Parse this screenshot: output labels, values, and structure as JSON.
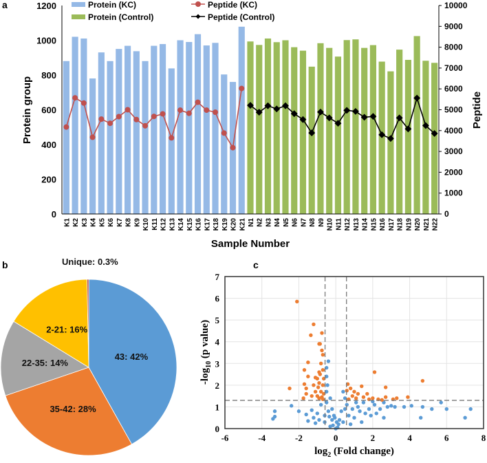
{
  "panels": {
    "a": "a",
    "b": "b",
    "c": "c"
  },
  "chart_data": [
    {
      "type": "bar",
      "panel": "a",
      "xlabel": "Sample Number",
      "ylabel": "Protein group",
      "y2label": "Peptide",
      "ylim": [
        0,
        1200
      ],
      "y2lim": [
        0,
        10000
      ],
      "yticks": [
        0,
        200,
        400,
        600,
        800,
        1000,
        1200
      ],
      "y2ticks": [
        0,
        1000,
        2000,
        3000,
        4000,
        5000,
        6000,
        7000,
        8000,
        9000,
        10000
      ],
      "legend_position": "top",
      "colors": {
        "protein_kc": "#95b9e6",
        "protein_control": "#9bbb59",
        "peptide_kc": "#c0504d",
        "peptide_control": "#000000"
      },
      "groups": [
        {
          "protein_name": "Protein (KC)",
          "peptide_name": "Peptide (KC)",
          "categories": [
            "K1",
            "K2",
            "K3",
            "K4",
            "K5",
            "K6",
            "K7",
            "K8",
            "K9",
            "K10",
            "K11",
            "K12",
            "K13",
            "K14",
            "K15",
            "K16",
            "K17",
            "K18",
            "K19",
            "K20",
            "K21"
          ],
          "protein": [
            880,
            1020,
            1010,
            780,
            930,
            880,
            950,
            968,
            937,
            880,
            968,
            978,
            838,
            1000,
            990,
            1035,
            970,
            985,
            803,
            760,
            1078
          ],
          "peptide": [
            4170,
            5570,
            5320,
            3680,
            4550,
            4350,
            4670,
            5000,
            4530,
            4230,
            4680,
            4800,
            3650,
            4980,
            4830,
            5360,
            4980,
            4880,
            3880,
            3180,
            6020
          ]
        },
        {
          "protein_name": "Protein (Control)",
          "peptide_name": "Peptide (Control)",
          "categories": [
            "N1",
            "N2",
            "N3",
            "N4",
            "N5",
            "N6",
            "N7",
            "N8",
            "N9",
            "N10",
            "N11",
            "N12",
            "N13",
            "N14",
            "N15",
            "N16",
            "N17",
            "N18",
            "N19",
            "N20",
            "N21",
            "N22"
          ],
          "protein": [
            993,
            973,
            1010,
            989,
            1000,
            960,
            940,
            848,
            983,
            956,
            906,
            1001,
            1005,
            956,
            972,
            877,
            821,
            946,
            887,
            1024,
            882,
            870
          ],
          "peptide": [
            5210,
            4880,
            5190,
            5040,
            5190,
            4810,
            4530,
            3890,
            4890,
            4610,
            4350,
            4970,
            4920,
            4640,
            4680,
            3800,
            3620,
            4610,
            4080,
            5560,
            4240,
            3860
          ]
        }
      ]
    },
    {
      "type": "pie",
      "panel": "b",
      "slices": [
        {
          "label": "43: 42%",
          "value": 42,
          "color": "#5b9bd5"
        },
        {
          "label": "35-42: 28%",
          "value": 28,
          "color": "#ed7d31"
        },
        {
          "label": "22-35: 14%",
          "value": 14,
          "color": "#a5a5a5"
        },
        {
          "label": "2-21: 16%",
          "value": 16,
          "color": "#ffc000"
        },
        {
          "label": "Unique: 0.3%",
          "value": 0.3,
          "color": "#b03a2e"
        }
      ]
    },
    {
      "type": "scatter",
      "panel": "c",
      "xlabel": "log2 (Fold change)",
      "xlabel_main": "log",
      "xlabel_sub": "2",
      "xlabel_rest": " (Fold change)",
      "ylabel_main": "-log",
      "ylabel_sub": "10",
      "ylabel_rest": " (p value)",
      "xlim": [
        -6,
        8
      ],
      "ylim": [
        0,
        7
      ],
      "xticks": [
        -6,
        -4,
        -2,
        0,
        2,
        4,
        6,
        8
      ],
      "yticks": [
        0,
        1,
        2,
        3,
        4,
        5,
        6,
        7
      ],
      "grid": true,
      "threshold_lines": {
        "x": [
          -0.58,
          0.58
        ],
        "y": 1.3
      },
      "colors": {
        "significant": "#ed7d31",
        "not_significant": "#5b9bd5"
      },
      "significant": [
        [
          -2.1,
          5.85
        ],
        [
          -1.2,
          4.8
        ],
        [
          -1.35,
          4.3
        ],
        [
          -0.75,
          4.4
        ],
        [
          -0.9,
          3.9
        ],
        [
          -0.85,
          3.9
        ],
        [
          -0.75,
          3.6
        ],
        [
          -0.7,
          3.4
        ],
        [
          -1.5,
          3.05
        ],
        [
          -0.8,
          3.0
        ],
        [
          -1.7,
          2.7
        ],
        [
          -0.9,
          2.6
        ],
        [
          -0.7,
          2.7
        ],
        [
          -1.5,
          2.4
        ],
        [
          -1.1,
          2.35
        ],
        [
          -0.85,
          2.5
        ],
        [
          -0.65,
          2.3
        ],
        [
          -1.0,
          2.3
        ],
        [
          -1.7,
          2.05
        ],
        [
          -1.2,
          2.0
        ],
        [
          -0.9,
          2.1
        ],
        [
          -0.7,
          2.0
        ],
        [
          -0.95,
          1.9
        ],
        [
          -2.5,
          1.85
        ],
        [
          -1.6,
          1.85
        ],
        [
          -1.6,
          1.6
        ],
        [
          -0.8,
          1.7
        ],
        [
          -1.1,
          1.7
        ],
        [
          -0.65,
          1.6
        ],
        [
          -1.0,
          1.5
        ],
        [
          -0.75,
          1.45
        ],
        [
          -1.75,
          1.4
        ],
        [
          -0.9,
          1.4
        ],
        [
          -1.3,
          1.5
        ],
        [
          -0.7,
          1.35
        ],
        [
          2.1,
          2.6
        ],
        [
          4.7,
          2.2
        ],
        [
          0.65,
          2.05
        ],
        [
          0.8,
          1.85
        ],
        [
          1.4,
          1.95
        ],
        [
          2.7,
          1.9
        ],
        [
          1.0,
          1.7
        ],
        [
          1.2,
          1.6
        ],
        [
          0.6,
          1.75
        ],
        [
          1.7,
          1.6
        ],
        [
          0.9,
          1.5
        ],
        [
          1.5,
          1.45
        ],
        [
          2.0,
          1.4
        ],
        [
          2.7,
          1.45
        ],
        [
          3.9,
          1.45
        ],
        [
          3.3,
          1.4
        ],
        [
          3.1,
          1.35
        ],
        [
          2.3,
          1.35
        ],
        [
          1.1,
          1.4
        ],
        [
          0.7,
          1.35
        ],
        [
          1.8,
          1.35
        ],
        [
          2.5,
          1.32
        ]
      ],
      "not_significant": [
        [
          -0.4,
          3.1
        ],
        [
          -0.5,
          2.8
        ],
        [
          -0.5,
          2.4
        ],
        [
          -0.45,
          2.0
        ],
        [
          -0.5,
          1.7
        ],
        [
          -0.3,
          1.4
        ],
        [
          0.4,
          1.7
        ],
        [
          0.5,
          1.4
        ],
        [
          -3.4,
          0.45
        ],
        [
          -3.3,
          0.55
        ],
        [
          -3.3,
          0.8
        ],
        [
          -2.4,
          1.05
        ],
        [
          -2.0,
          0.8
        ],
        [
          -1.6,
          0.65
        ],
        [
          -1.3,
          0.85
        ],
        [
          -1.0,
          0.7
        ],
        [
          -0.8,
          1.1
        ],
        [
          -1.5,
          0.35
        ],
        [
          -1.1,
          0.25
        ],
        [
          -0.6,
          0.3
        ],
        [
          -0.3,
          0.1
        ],
        [
          0,
          0
        ],
        [
          0.1,
          0.05
        ],
        [
          -0.2,
          0.4
        ],
        [
          0.2,
          0.4
        ],
        [
          -0.4,
          0.8
        ],
        [
          0.3,
          0.8
        ],
        [
          -0.5,
          1.2
        ],
        [
          0.6,
          1.1
        ],
        [
          0.9,
          0.9
        ],
        [
          1.2,
          1.0
        ],
        [
          1.5,
          1.2
        ],
        [
          1.8,
          0.9
        ],
        [
          2.1,
          1.1
        ],
        [
          2.4,
          0.9
        ],
        [
          2.6,
          1.2
        ],
        [
          2.6,
          0.5
        ],
        [
          3.2,
          1.0
        ],
        [
          3.0,
          1.05
        ],
        [
          3.7,
          1.0
        ],
        [
          4.1,
          1.05
        ],
        [
          4.6,
          0.5
        ],
        [
          4.7,
          1.0
        ],
        [
          5.2,
          0.9
        ],
        [
          5.7,
          1.2
        ],
        [
          6.0,
          0.9
        ],
        [
          7.0,
          0.5
        ],
        [
          7.3,
          0.9
        ],
        [
          1.0,
          0.5
        ],
        [
          1.4,
          0.3
        ],
        [
          0.8,
          0.2
        ],
        [
          1.9,
          0.6
        ],
        [
          2.2,
          0.7
        ],
        [
          1.6,
          0.7
        ],
        [
          -0.1,
          0.6
        ],
        [
          0.4,
          0.3
        ],
        [
          -0.6,
          0.6
        ],
        [
          -1.2,
          0.5
        ],
        [
          -0.9,
          0.4
        ],
        [
          0.7,
          0.6
        ],
        [
          1.1,
          1.2
        ],
        [
          -0.2,
          0.9
        ],
        [
          0.15,
          0.2
        ],
        [
          -0.15,
          0.15
        ],
        [
          0.05,
          0.3
        ],
        [
          -0.05,
          0.5
        ],
        [
          0.5,
          0.9
        ],
        [
          -0.35,
          0.55
        ],
        [
          1.3,
          0.8
        ],
        [
          2.0,
          1.25
        ],
        [
          2.8,
          1.0
        ]
      ]
    }
  ]
}
